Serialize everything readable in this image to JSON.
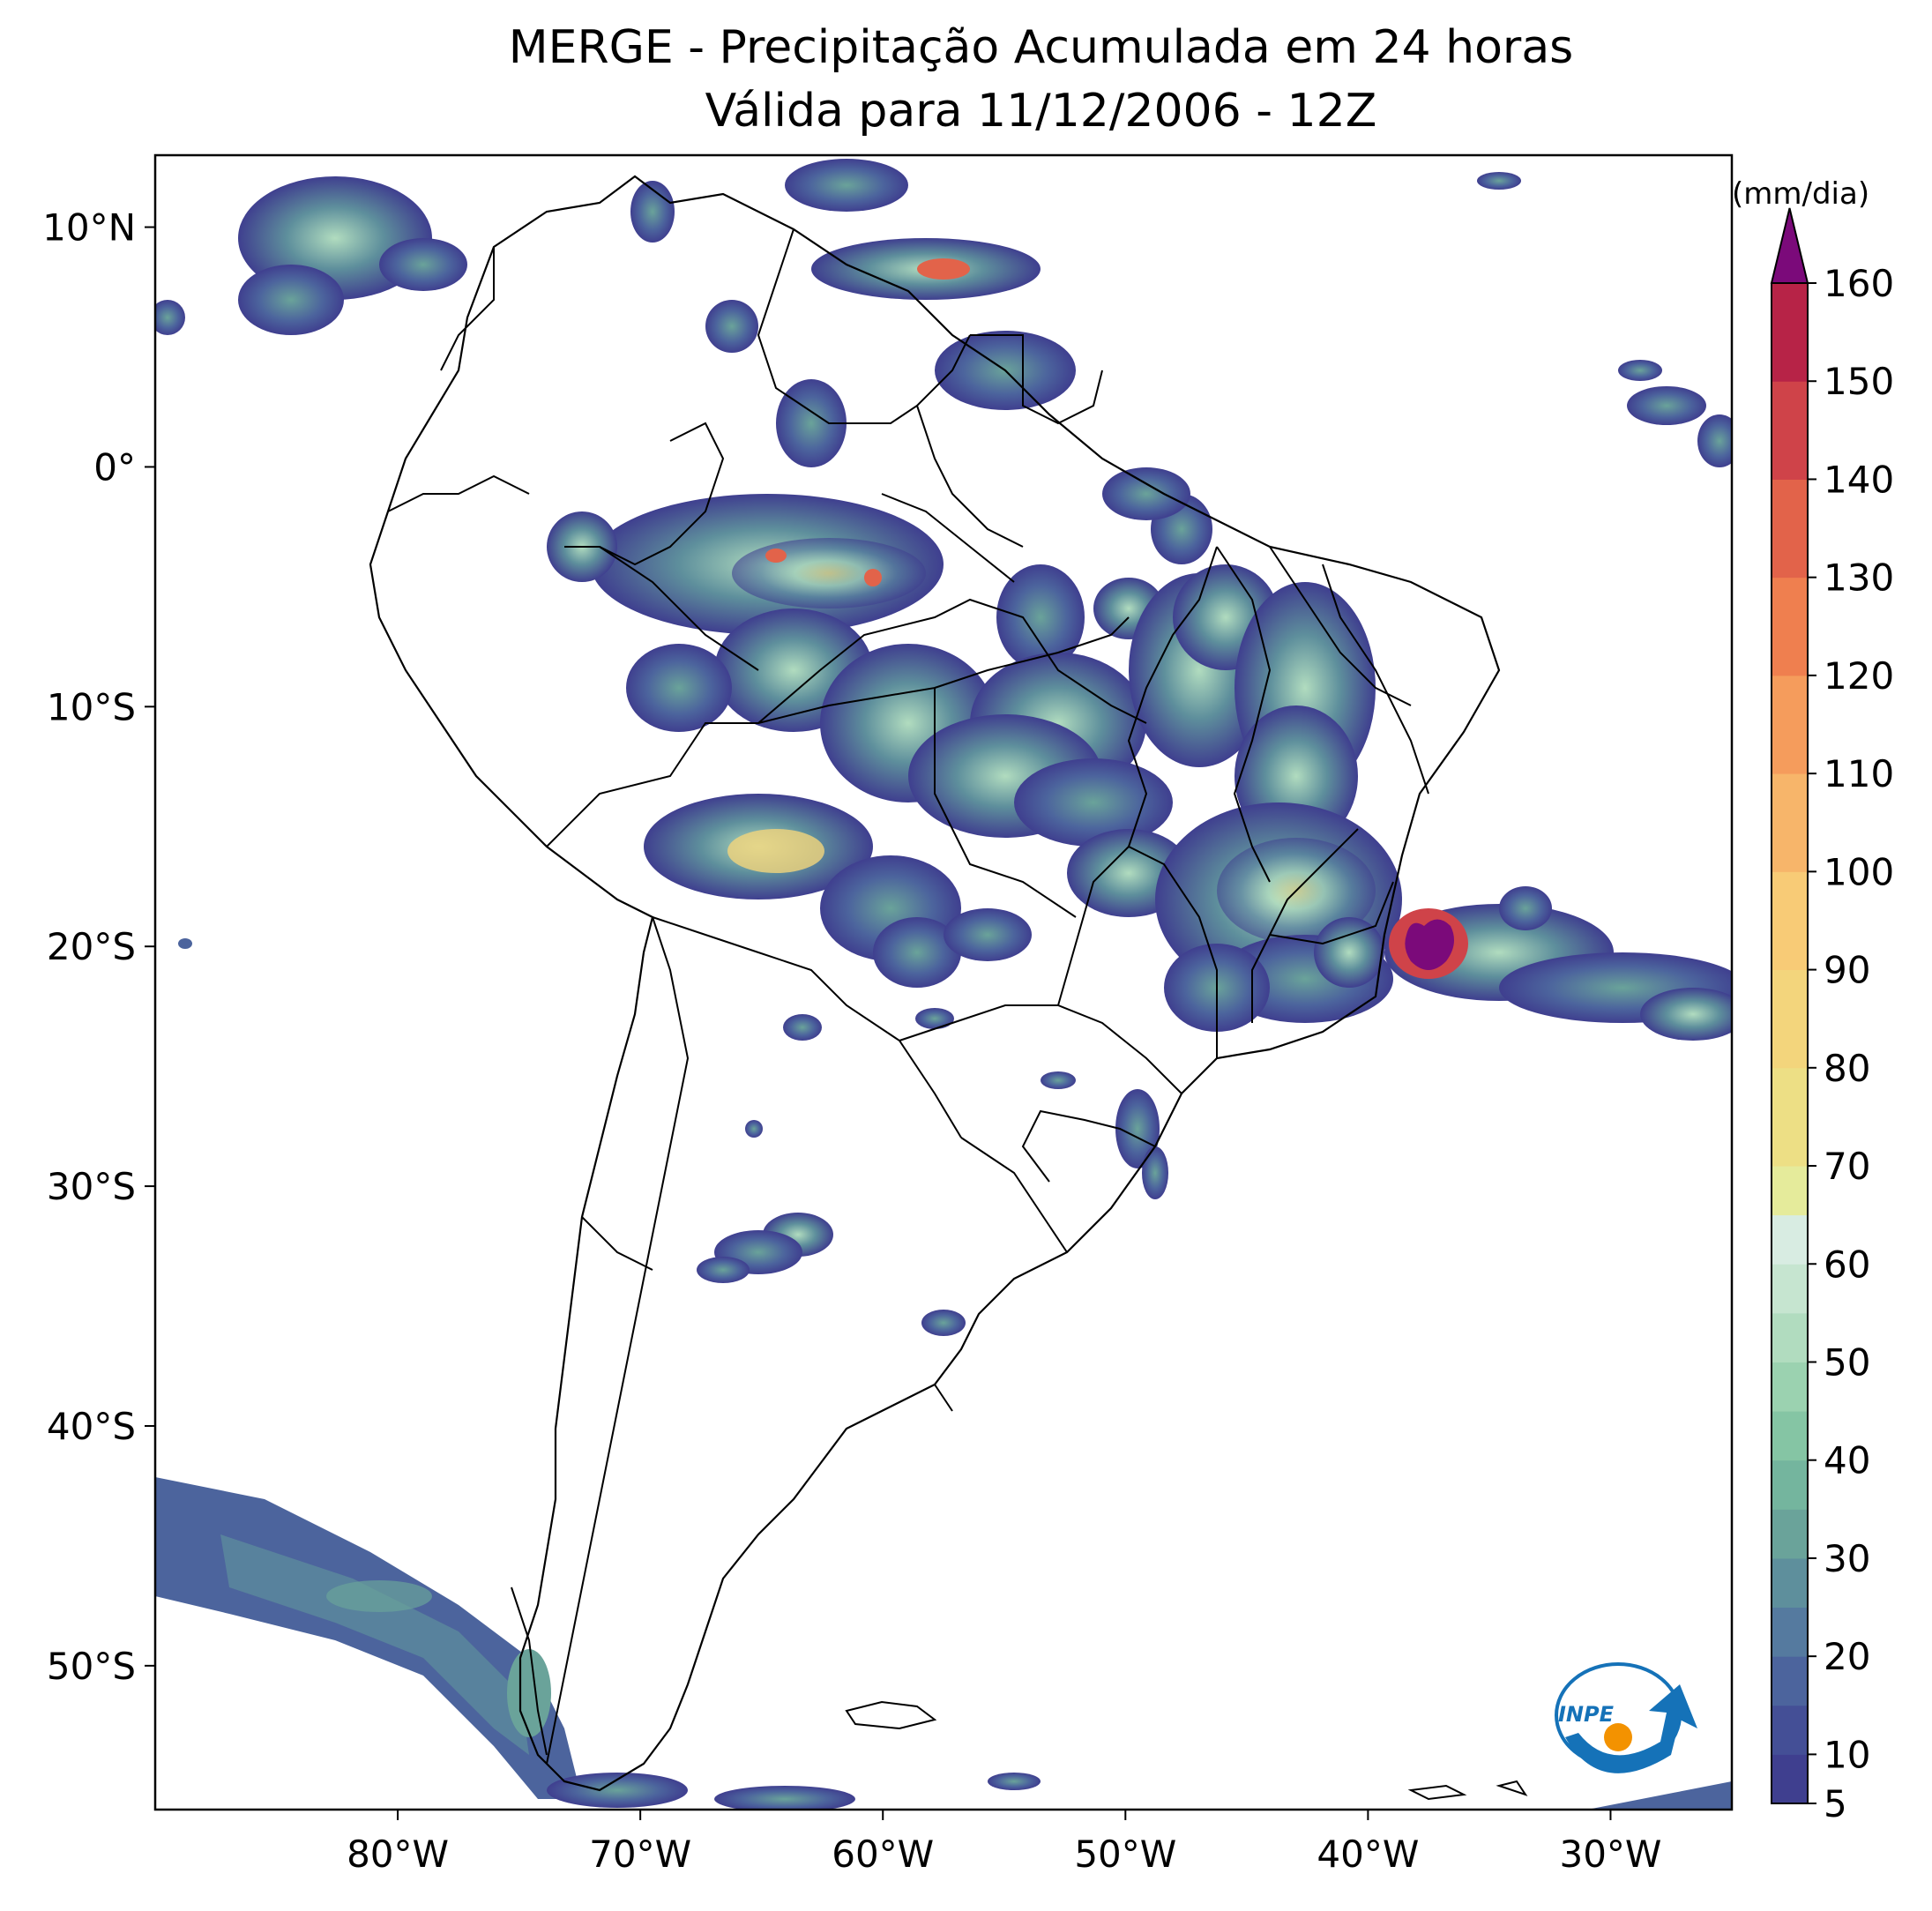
{
  "title": {
    "line1": "MERGE - Precipitação Acumulada em 24 horas",
    "line2": "Válida para 11/12/2006 - 12Z"
  },
  "map": {
    "extent": {
      "lon_min": -90,
      "lon_max": -25,
      "lat_min": -56,
      "lat_max": 13
    },
    "lon_ticks": [
      {
        "value": -80,
        "label": "80°W"
      },
      {
        "value": -70,
        "label": "70°W"
      },
      {
        "value": -60,
        "label": "60°W"
      },
      {
        "value": -50,
        "label": "50°W"
      },
      {
        "value": -40,
        "label": "40°W"
      },
      {
        "value": -30,
        "label": "30°W"
      }
    ],
    "lat_ticks": [
      {
        "value": 10,
        "label": "10°N"
      },
      {
        "value": 0,
        "label": "0°"
      },
      {
        "value": -10,
        "label": "10°S"
      },
      {
        "value": -20,
        "label": "20°S"
      },
      {
        "value": -30,
        "label": "30°S"
      },
      {
        "value": -40,
        "label": "40°S"
      },
      {
        "value": -50,
        "label": "50°S"
      }
    ]
  },
  "colorbar": {
    "unit": "(mm/dia)",
    "min": 5,
    "max": 160,
    "extend": "max",
    "tick_labels": [
      "5",
      "10",
      "20",
      "30",
      "40",
      "50",
      "60",
      "70",
      "80",
      "90",
      "100",
      "110",
      "120",
      "130",
      "140",
      "150",
      "160"
    ],
    "bands": [
      {
        "from": 5,
        "to": 10,
        "color": "#3f3f8f"
      },
      {
        "from": 10,
        "to": 15,
        "color": "#444f96"
      },
      {
        "from": 15,
        "to": 20,
        "color": "#4c649d"
      },
      {
        "from": 20,
        "to": 25,
        "color": "#557a9f"
      },
      {
        "from": 25,
        "to": 30,
        "color": "#5e8f9c"
      },
      {
        "from": 30,
        "to": 35,
        "color": "#6aa39a"
      },
      {
        "from": 35,
        "to": 40,
        "color": "#74b59e"
      },
      {
        "from": 40,
        "to": 45,
        "color": "#85c5a4"
      },
      {
        "from": 45,
        "to": 50,
        "color": "#9bd2b0"
      },
      {
        "from": 50,
        "to": 55,
        "color": "#b1dcbf"
      },
      {
        "from": 55,
        "to": 60,
        "color": "#c6e5d0"
      },
      {
        "from": 60,
        "to": 65,
        "color": "#d8ece2"
      },
      {
        "from": 65,
        "to": 70,
        "color": "#e5eb9b"
      },
      {
        "from": 70,
        "to": 80,
        "color": "#eddf85"
      },
      {
        "from": 80,
        "to": 90,
        "color": "#f3d57c"
      },
      {
        "from": 90,
        "to": 100,
        "color": "#f8cb76"
      },
      {
        "from": 100,
        "to": 110,
        "color": "#f7b56a"
      },
      {
        "from": 110,
        "to": 120,
        "color": "#f59c5c"
      },
      {
        "from": 120,
        "to": 130,
        "color": "#ef7f4f"
      },
      {
        "from": 130,
        "to": 140,
        "color": "#e2634a"
      },
      {
        "from": 140,
        "to": 150,
        "color": "#cf4349"
      },
      {
        "from": 150,
        "to": 160,
        "color": "#b72347"
      }
    ],
    "over_color": "#7b0a7a"
  },
  "logo": {
    "text": "INPE",
    "colors": [
      "#1572b8",
      "#f39200"
    ]
  }
}
